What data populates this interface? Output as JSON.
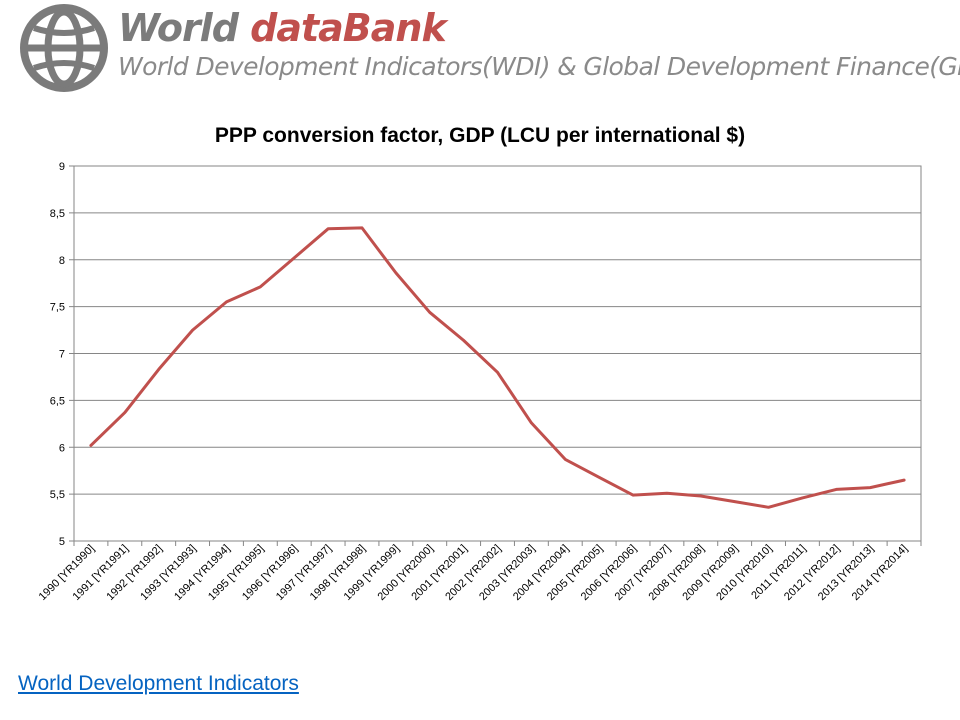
{
  "header": {
    "brand_part1": "World ",
    "brand_part2": "dataBank",
    "subtitle": "World Development Indicators(WDI) & Global Development Finance(GDF)",
    "globe_icon": "globe-logo-icon",
    "brand_color": "#c0504d"
  },
  "footer": {
    "link_text": "World Development Indicators"
  },
  "chart_data": {
    "type": "line",
    "title": "PPP conversion factor, GDP (LCU per international $)",
    "xlabel": "",
    "ylabel": "",
    "ylim": [
      5,
      9
    ],
    "yticks": [
      "5",
      "5,5",
      "6",
      "6,5",
      "7",
      "7,5",
      "8",
      "8,5",
      "9"
    ],
    "grid": true,
    "legend": "none",
    "line_color": "#c0504d",
    "categories": [
      "1990 [YR1990]",
      "1991 [YR1991]",
      "1992 [YR1992]",
      "1993 [YR1993]",
      "1994 [YR1994]",
      "1995 [YR1995]",
      "1996 [YR1996]",
      "1997 [YR1997]",
      "1998 [YR1998]",
      "1999 [YR1999]",
      "2000 [YR2000]",
      "2001 [YR2001]",
      "2002 [YR2002]",
      "2003 [YR2003]",
      "2004 [YR2004]",
      "2005 [YR2005]",
      "2006 [YR2006]",
      "2007 [YR2007]",
      "2008 [YR2008]",
      "2009 [YR2009]",
      "2010 [YR2010]",
      "2011 [YR2011]",
      "2012 [YR2012]",
      "2013 [YR2013]",
      "2014 [YR2014]"
    ],
    "series": [
      {
        "values": [
          6.02,
          6.37,
          6.83,
          7.25,
          7.55,
          7.71,
          8.02,
          8.33,
          8.34,
          7.86,
          7.44,
          7.14,
          6.8,
          6.26,
          5.87,
          5.68,
          5.49,
          5.51,
          5.48,
          5.42,
          5.36,
          5.46,
          5.55,
          5.57,
          5.65
        ]
      }
    ]
  }
}
